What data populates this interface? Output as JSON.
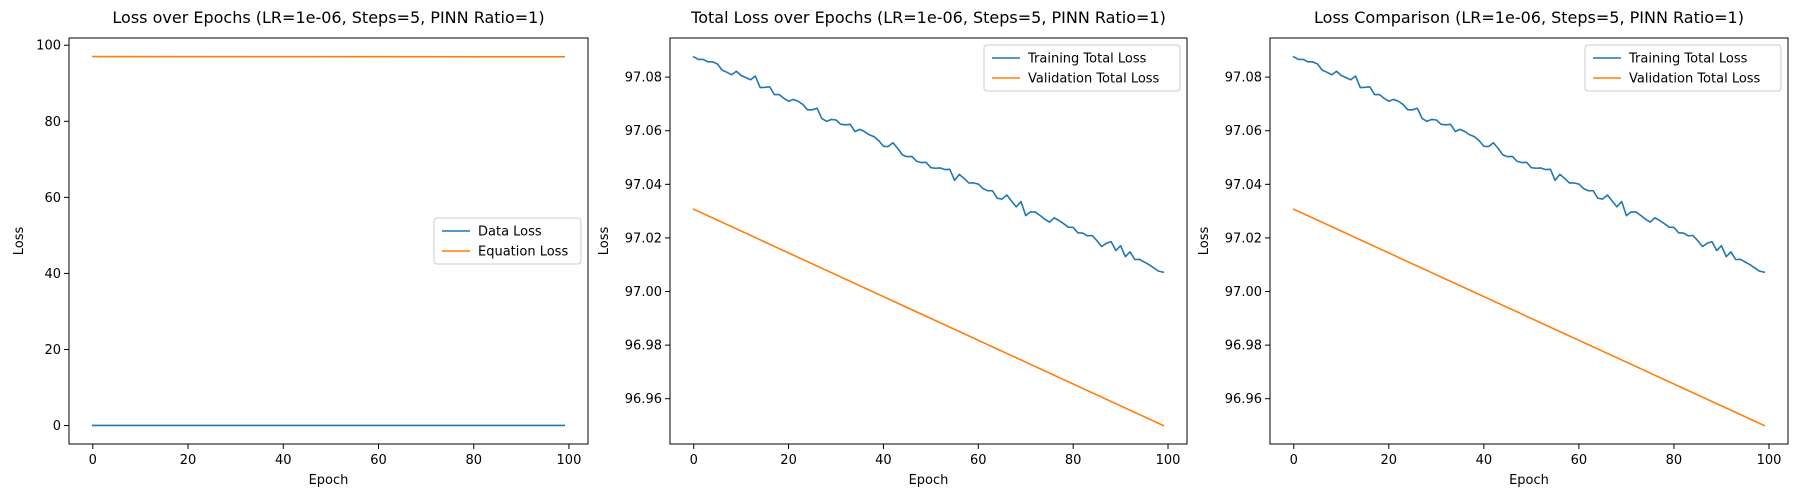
{
  "chart_data": [
    {
      "type": "line",
      "title": "Loss over Epochs (LR=1e-06, Steps=5, PINN Ratio=1)",
      "xlabel": "Epoch",
      "ylabel": "Loss",
      "xlim": [
        -5,
        104
      ],
      "ylim": [
        -4.85,
        101.9
      ],
      "xticks": [
        0,
        20,
        40,
        60,
        80,
        100
      ],
      "yticks": [
        0,
        20,
        40,
        60,
        80,
        100
      ],
      "xtick_labels": [
        "0",
        "20",
        "40",
        "60",
        "80",
        "100"
      ],
      "ytick_labels": [
        "0",
        "20",
        "40",
        "60",
        "80",
        "100"
      ],
      "legend": "center-right",
      "grid": false,
      "series": [
        {
          "name": "Data Loss",
          "color": "#1f77b4",
          "x": [
            0,
            99
          ],
          "y": [
            0.02,
            0.02
          ]
        },
        {
          "name": "Equation Loss",
          "color": "#ff7f0e",
          "x": [
            0,
            99
          ],
          "y": [
            97.03,
            96.95
          ]
        }
      ]
    },
    {
      "type": "line",
      "title": "Total Loss over Epochs (LR=1e-06, Steps=5, PINN Ratio=1)",
      "xlabel": "Epoch",
      "ylabel": "Loss",
      "xlim": [
        -5,
        104
      ],
      "ylim": [
        96.9431,
        97.0946
      ],
      "xticks": [
        0,
        20,
        40,
        60,
        80,
        100
      ],
      "yticks": [
        96.96,
        96.98,
        97.0,
        97.02,
        97.04,
        97.06,
        97.08
      ],
      "xtick_labels": [
        "0",
        "20",
        "40",
        "60",
        "80",
        "100"
      ],
      "ytick_labels": [
        "96.96",
        "96.98",
        "97.00",
        "97.02",
        "97.04",
        "97.06",
        "97.08"
      ],
      "legend": "top-right",
      "grid": false,
      "series": [
        {
          "name": "Training Total Loss",
          "color": "#1f77b4",
          "x": [
            0,
            1,
            2,
            3,
            4,
            5,
            6,
            7,
            8,
            9,
            10,
            11,
            12,
            13,
            14,
            15,
            16,
            17,
            18,
            19,
            20,
            21,
            22,
            23,
            24,
            25,
            26,
            27,
            28,
            29,
            30,
            31,
            32,
            33,
            34,
            35,
            36,
            37,
            38,
            39,
            40,
            41,
            42,
            43,
            44,
            45,
            46,
            47,
            48,
            49,
            50,
            51,
            52,
            53,
            54,
            55,
            56,
            57,
            58,
            59,
            60,
            61,
            62,
            63,
            64,
            65,
            66,
            67,
            68,
            69,
            70,
            71,
            72,
            73,
            74,
            75,
            76,
            77,
            78,
            79,
            80,
            81,
            82,
            83,
            84,
            85,
            86,
            87,
            88,
            89,
            90,
            91,
            92,
            93,
            94,
            95,
            96,
            97,
            98,
            99
          ],
          "y": [
            97.0876,
            97.0866,
            97.0866,
            97.0857,
            97.0857,
            97.0849,
            97.0826,
            97.0818,
            97.0809,
            97.0822,
            97.0806,
            97.0798,
            97.079,
            97.0804,
            97.0761,
            97.0762,
            97.0764,
            97.0735,
            97.0735,
            97.0721,
            97.071,
            97.0717,
            97.071,
            97.0698,
            97.0678,
            97.0678,
            97.0684,
            97.0646,
            97.0635,
            97.0642,
            97.064,
            97.0624,
            97.0622,
            97.0624,
            97.0597,
            97.0605,
            97.0597,
            97.0585,
            97.0578,
            97.0563,
            97.0542,
            97.0541,
            97.0555,
            97.0534,
            97.051,
            97.0503,
            97.0504,
            97.0486,
            97.0481,
            97.0482,
            97.0462,
            97.046,
            97.0461,
            97.0455,
            97.0456,
            97.0415,
            97.0437,
            97.0422,
            97.0405,
            97.0405,
            97.0401,
            97.0384,
            97.0376,
            97.0376,
            97.0348,
            97.0345,
            97.036,
            97.0338,
            97.0316,
            97.0336,
            97.0283,
            97.0297,
            97.0297,
            97.0284,
            97.027,
            97.0259,
            97.0275,
            97.0265,
            97.0253,
            97.024,
            97.0239,
            97.0219,
            97.0218,
            97.0208,
            97.0209,
            97.019,
            97.0168,
            97.018,
            97.0186,
            97.0153,
            97.0171,
            97.013,
            97.0148,
            97.0119,
            97.012,
            97.011,
            97.01,
            97.0088,
            97.0076,
            97.0072
          ]
        },
        {
          "name": "Validation Total Loss",
          "color": "#ff7f0e",
          "x": [
            0,
            99
          ],
          "y": [
            97.0307,
            96.95
          ]
        }
      ]
    },
    {
      "type": "line",
      "title": "Loss Comparison (LR=1e-06, Steps=5, PINN Ratio=1)",
      "xlabel": "Epoch",
      "ylabel": "Loss",
      "xlim": [
        -5,
        104
      ],
      "ylim": [
        96.9431,
        97.0946
      ],
      "xticks": [
        0,
        20,
        40,
        60,
        80,
        100
      ],
      "yticks": [
        96.96,
        96.98,
        97.0,
        97.02,
        97.04,
        97.06,
        97.08
      ],
      "xtick_labels": [
        "0",
        "20",
        "40",
        "60",
        "80",
        "100"
      ],
      "ytick_labels": [
        "96.96",
        "96.98",
        "97.00",
        "97.02",
        "97.04",
        "97.06",
        "97.08"
      ],
      "legend": "top-right",
      "grid": false,
      "series": [
        {
          "name": "Training Total Loss",
          "color": "#1f77b4",
          "x": [
            0,
            1,
            2,
            3,
            4,
            5,
            6,
            7,
            8,
            9,
            10,
            11,
            12,
            13,
            14,
            15,
            16,
            17,
            18,
            19,
            20,
            21,
            22,
            23,
            24,
            25,
            26,
            27,
            28,
            29,
            30,
            31,
            32,
            33,
            34,
            35,
            36,
            37,
            38,
            39,
            40,
            41,
            42,
            43,
            44,
            45,
            46,
            47,
            48,
            49,
            50,
            51,
            52,
            53,
            54,
            55,
            56,
            57,
            58,
            59,
            60,
            61,
            62,
            63,
            64,
            65,
            66,
            67,
            68,
            69,
            70,
            71,
            72,
            73,
            74,
            75,
            76,
            77,
            78,
            79,
            80,
            81,
            82,
            83,
            84,
            85,
            86,
            87,
            88,
            89,
            90,
            91,
            92,
            93,
            94,
            95,
            96,
            97,
            98,
            99
          ],
          "y": [
            97.0876,
            97.0866,
            97.0866,
            97.0857,
            97.0857,
            97.0849,
            97.0826,
            97.0818,
            97.0809,
            97.0822,
            97.0806,
            97.0798,
            97.079,
            97.0804,
            97.0761,
            97.0762,
            97.0764,
            97.0735,
            97.0735,
            97.0721,
            97.071,
            97.0717,
            97.071,
            97.0698,
            97.0678,
            97.0678,
            97.0684,
            97.0646,
            97.0635,
            97.0642,
            97.064,
            97.0624,
            97.0622,
            97.0624,
            97.0597,
            97.0605,
            97.0597,
            97.0585,
            97.0578,
            97.0563,
            97.0542,
            97.0541,
            97.0555,
            97.0534,
            97.051,
            97.0503,
            97.0504,
            97.0486,
            97.0481,
            97.0482,
            97.0462,
            97.046,
            97.0461,
            97.0455,
            97.0456,
            97.0415,
            97.0437,
            97.0422,
            97.0405,
            97.0405,
            97.0401,
            97.0384,
            97.0376,
            97.0376,
            97.0348,
            97.0345,
            97.036,
            97.0338,
            97.0316,
            97.0336,
            97.0283,
            97.0297,
            97.0297,
            97.0284,
            97.027,
            97.0259,
            97.0275,
            97.0265,
            97.0253,
            97.024,
            97.0239,
            97.0219,
            97.0218,
            97.0208,
            97.0209,
            97.019,
            97.0168,
            97.018,
            97.0186,
            97.0153,
            97.0171,
            97.013,
            97.0148,
            97.0119,
            97.012,
            97.011,
            97.01,
            97.0088,
            97.0076,
            97.0072
          ]
        },
        {
          "name": "Validation Total Loss",
          "color": "#ff7f0e",
          "x": [
            0,
            99
          ],
          "y": [
            97.0307,
            96.95
          ]
        }
      ]
    }
  ]
}
